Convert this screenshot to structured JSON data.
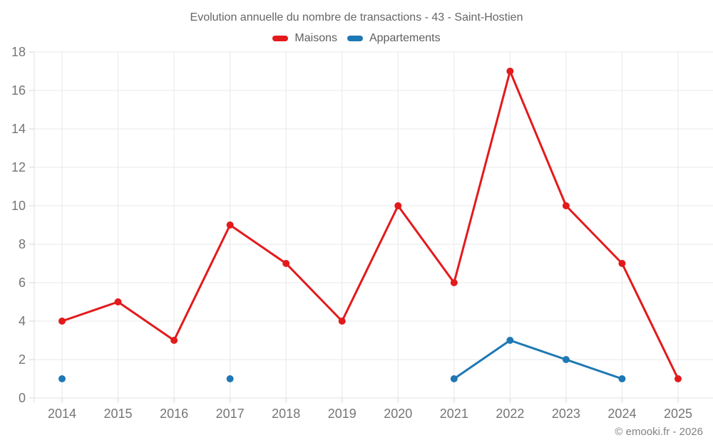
{
  "page": {
    "title": "Evolution annuelle du nombre de transactions - 43 - Saint-Hostien",
    "footer": "© emooki.fr - 2026"
  },
  "legend": {
    "items": [
      {
        "label": "Maisons",
        "color": "#e31a1c"
      },
      {
        "label": "Appartements",
        "color": "#1f78b4"
      }
    ]
  },
  "chart_data": {
    "type": "line",
    "title": "Evolution annuelle du nombre de transactions - 43 - Saint-Hostien",
    "categories": [
      "2014",
      "2015",
      "2016",
      "2017",
      "2018",
      "2019",
      "2020",
      "2021",
      "2022",
      "2023",
      "2024",
      "2025"
    ],
    "series": [
      {
        "name": "Maisons",
        "color": "#e31a1c",
        "values": [
          4,
          5,
          3,
          9,
          7,
          4,
          10,
          6,
          17,
          10,
          7,
          1
        ]
      },
      {
        "name": "Appartements",
        "color": "#1f78b4",
        "values": [
          1,
          null,
          null,
          1,
          null,
          null,
          null,
          1,
          3,
          2,
          1,
          null
        ]
      }
    ],
    "xlabel": "",
    "ylabel": "",
    "ylim": [
      0,
      18
    ],
    "ytick_step": 2,
    "grid": true,
    "legend_position": "top",
    "colors": {
      "grid": "#e9e9e9",
      "axis": "#e0e0e0",
      "tick": "#d6d6d6",
      "tick_label": "#757575"
    }
  }
}
